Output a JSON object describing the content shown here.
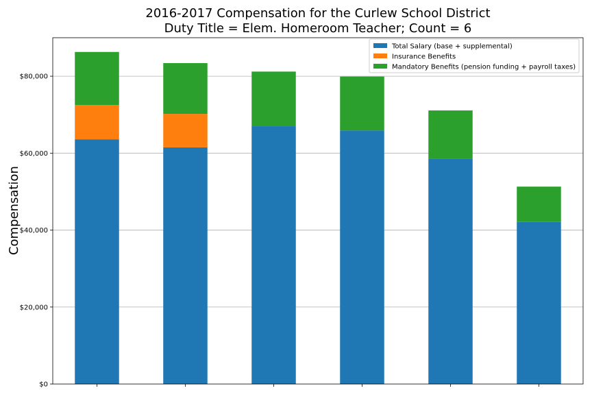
{
  "chart_data": {
    "type": "bar",
    "stacked": true,
    "title": "2016-2017 Compensation for the Curlew School District",
    "subtitle": "Duty Title = Elem. Homeroom Teacher; Count = 6",
    "xlabel": "",
    "ylabel": "Compensation",
    "categories": [
      "",
      "",
      "",
      "",
      "",
      ""
    ],
    "ylim": [
      0,
      90000
    ],
    "yticks": [
      0,
      20000,
      40000,
      60000,
      80000
    ],
    "ytick_labels": [
      "$0",
      "$20,000",
      "$40,000",
      "$60,000",
      "$80,000"
    ],
    "grid": "horizontal",
    "legend_position": "top-right",
    "series": [
      {
        "name": "Total Salary (base + supplemental)",
        "color": "#1f77b4",
        "values": [
          63600,
          61500,
          67000,
          65900,
          58600,
          42100
        ]
      },
      {
        "name": "Insurance Benefits",
        "color": "#ff7f0e",
        "values": [
          8900,
          8700,
          0,
          0,
          0,
          0
        ]
      },
      {
        "name": "Mandatory Benefits (pension funding + payroll taxes)",
        "color": "#2ca02c",
        "values": [
          13800,
          13200,
          14200,
          14000,
          12500,
          9200
        ]
      }
    ]
  }
}
